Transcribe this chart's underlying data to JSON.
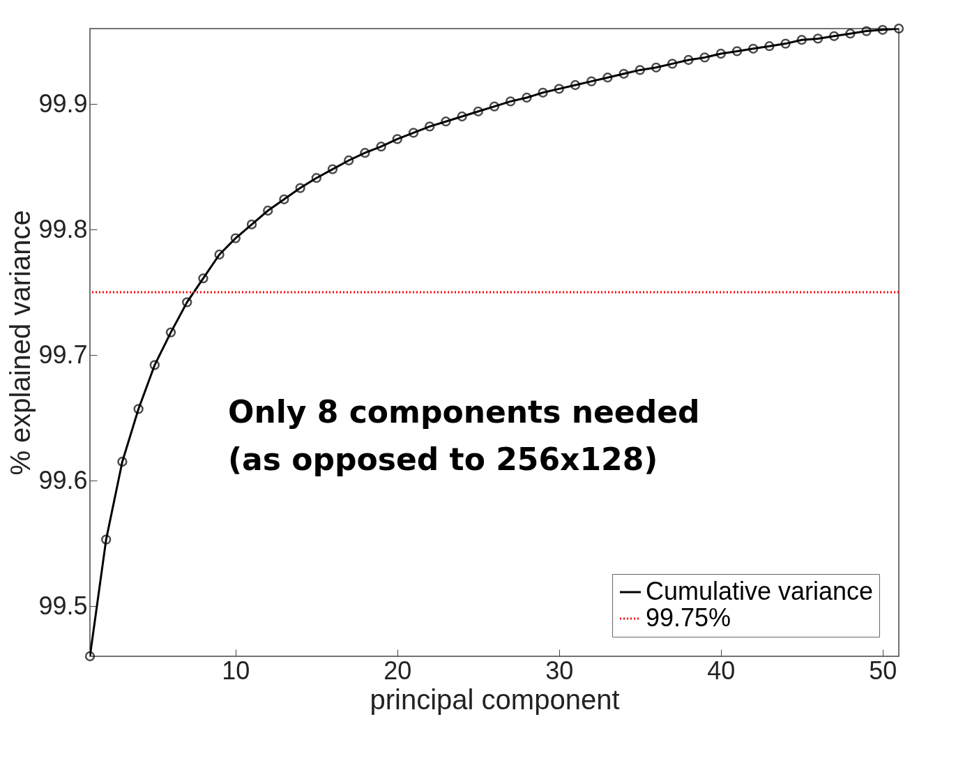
{
  "chart_data": {
    "type": "line",
    "xlabel": "principal component",
    "ylabel": "% explained variance",
    "x": [
      1,
      2,
      3,
      4,
      5,
      6,
      7,
      8,
      9,
      10,
      11,
      12,
      13,
      14,
      15,
      16,
      17,
      18,
      19,
      20,
      21,
      22,
      23,
      24,
      25,
      26,
      27,
      28,
      29,
      30,
      31,
      32,
      33,
      34,
      35,
      36,
      37,
      38,
      39,
      40,
      41,
      42,
      43,
      44,
      45,
      46,
      47,
      48,
      49,
      50,
      51
    ],
    "series": [
      {
        "name": "Cumulative variance",
        "color": "#000000",
        "values": [
          99.46,
          99.553,
          99.615,
          99.657,
          99.692,
          99.718,
          99.742,
          99.761,
          99.78,
          99.793,
          99.804,
          99.815,
          99.824,
          99.833,
          99.841,
          99.848,
          99.855,
          99.861,
          99.866,
          99.872,
          99.877,
          99.882,
          99.886,
          99.89,
          99.894,
          99.898,
          99.902,
          99.905,
          99.909,
          99.912,
          99.915,
          99.918,
          99.921,
          99.924,
          99.927,
          99.929,
          99.932,
          99.935,
          99.937,
          99.94,
          99.942,
          99.944,
          99.946,
          99.948,
          99.951,
          99.952,
          99.954,
          99.956,
          99.958,
          99.959,
          99.96
        ]
      }
    ],
    "xlim": [
      1,
      51
    ],
    "ylim": [
      99.46,
      99.96
    ],
    "xticks": [
      10,
      20,
      30,
      40,
      50
    ],
    "yticks": [
      99.5,
      99.6,
      99.7,
      99.8,
      99.9
    ],
    "ref_lines": [
      {
        "axis": "y",
        "value": 99.75,
        "label": "99.75%",
        "color": "#ff0000",
        "line_style": "dotted"
      }
    ],
    "annotations": [
      "Only 8 components needed\n(as opposed to 256x128)"
    ],
    "marker": "circle",
    "line_style": "solid",
    "legend": "bottom right"
  }
}
